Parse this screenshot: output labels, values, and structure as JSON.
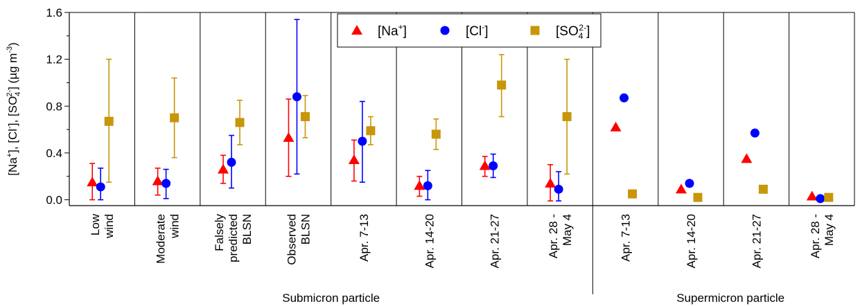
{
  "chart_data": {
    "type": "scatter",
    "ylabel_parts": [
      "[Na",
      "+",
      "], [Cl",
      "-",
      "], [SO",
      "4",
      "2-",
      "] (µg m",
      "-3",
      ")"
    ],
    "ylim": [
      -0.05,
      1.6
    ],
    "yticks": [
      "0.0",
      "0.4",
      "0.8",
      "1.2",
      "1.6"
    ],
    "categories": [
      [
        "Low",
        "wind"
      ],
      [
        "Moderate",
        "wind"
      ],
      [
        "Falsely",
        "predicted",
        "BLSN"
      ],
      [
        "Observed",
        "BLSN"
      ],
      [
        "Apr. 7-13"
      ],
      [
        "Apr. 14-20"
      ],
      [
        "Apr. 21-27"
      ],
      [
        "Apr. 28 -",
        "May 4"
      ],
      [
        "Apr. 7-13"
      ],
      [
        "Apr. 14-20"
      ],
      [
        "Apr. 21-27"
      ],
      [
        "Apr. 28 -",
        "May 4"
      ]
    ],
    "groups": [
      "Submicron particle",
      "Supermicron particle"
    ],
    "legend": [
      {
        "base": "[Na",
        "sup": "+",
        "sub": "",
        "end": "]"
      },
      {
        "base": "[Cl",
        "sup": "-",
        "sub": "",
        "end": "]"
      },
      {
        "base": "[SO",
        "sup": "2-",
        "sub": "4",
        "end": "]"
      }
    ],
    "series": [
      {
        "marker": "triangle",
        "color": "#ff0000",
        "values": [
          0.15,
          0.16,
          0.26,
          0.53,
          0.34,
          0.12,
          0.29,
          0.14,
          0.62,
          0.09,
          0.35,
          0.03
        ],
        "err_low": [
          0.0,
          0.04,
          0.14,
          0.2,
          0.16,
          0.03,
          0.2,
          -0.01,
          null,
          null,
          null,
          null
        ],
        "err_high": [
          0.31,
          0.27,
          0.38,
          0.86,
          0.51,
          0.2,
          0.37,
          0.3,
          null,
          null,
          null,
          null
        ]
      },
      {
        "marker": "circle",
        "color": "#0000ff",
        "values": [
          0.11,
          0.14,
          0.32,
          0.88,
          0.5,
          0.12,
          0.29,
          0.09,
          0.87,
          0.14,
          0.57,
          0.01
        ],
        "err_low": [
          0.0,
          0.01,
          0.1,
          0.22,
          0.15,
          0.0,
          0.19,
          -0.01,
          null,
          null,
          null,
          null
        ],
        "err_high": [
          0.27,
          0.26,
          0.55,
          1.54,
          0.84,
          0.25,
          0.39,
          0.24,
          null,
          null,
          null,
          null
        ]
      },
      {
        "marker": "square",
        "color": "#c8960a",
        "values": [
          0.67,
          0.7,
          0.66,
          0.71,
          0.59,
          0.56,
          0.98,
          0.71,
          0.05,
          0.02,
          0.09,
          0.02
        ],
        "err_low": [
          0.15,
          0.36,
          0.47,
          0.53,
          0.47,
          0.43,
          0.71,
          0.22,
          null,
          null,
          null,
          null
        ],
        "err_high": [
          1.2,
          1.04,
          0.85,
          0.89,
          0.71,
          0.69,
          1.24,
          1.2,
          null,
          null,
          null,
          null
        ]
      }
    ]
  }
}
